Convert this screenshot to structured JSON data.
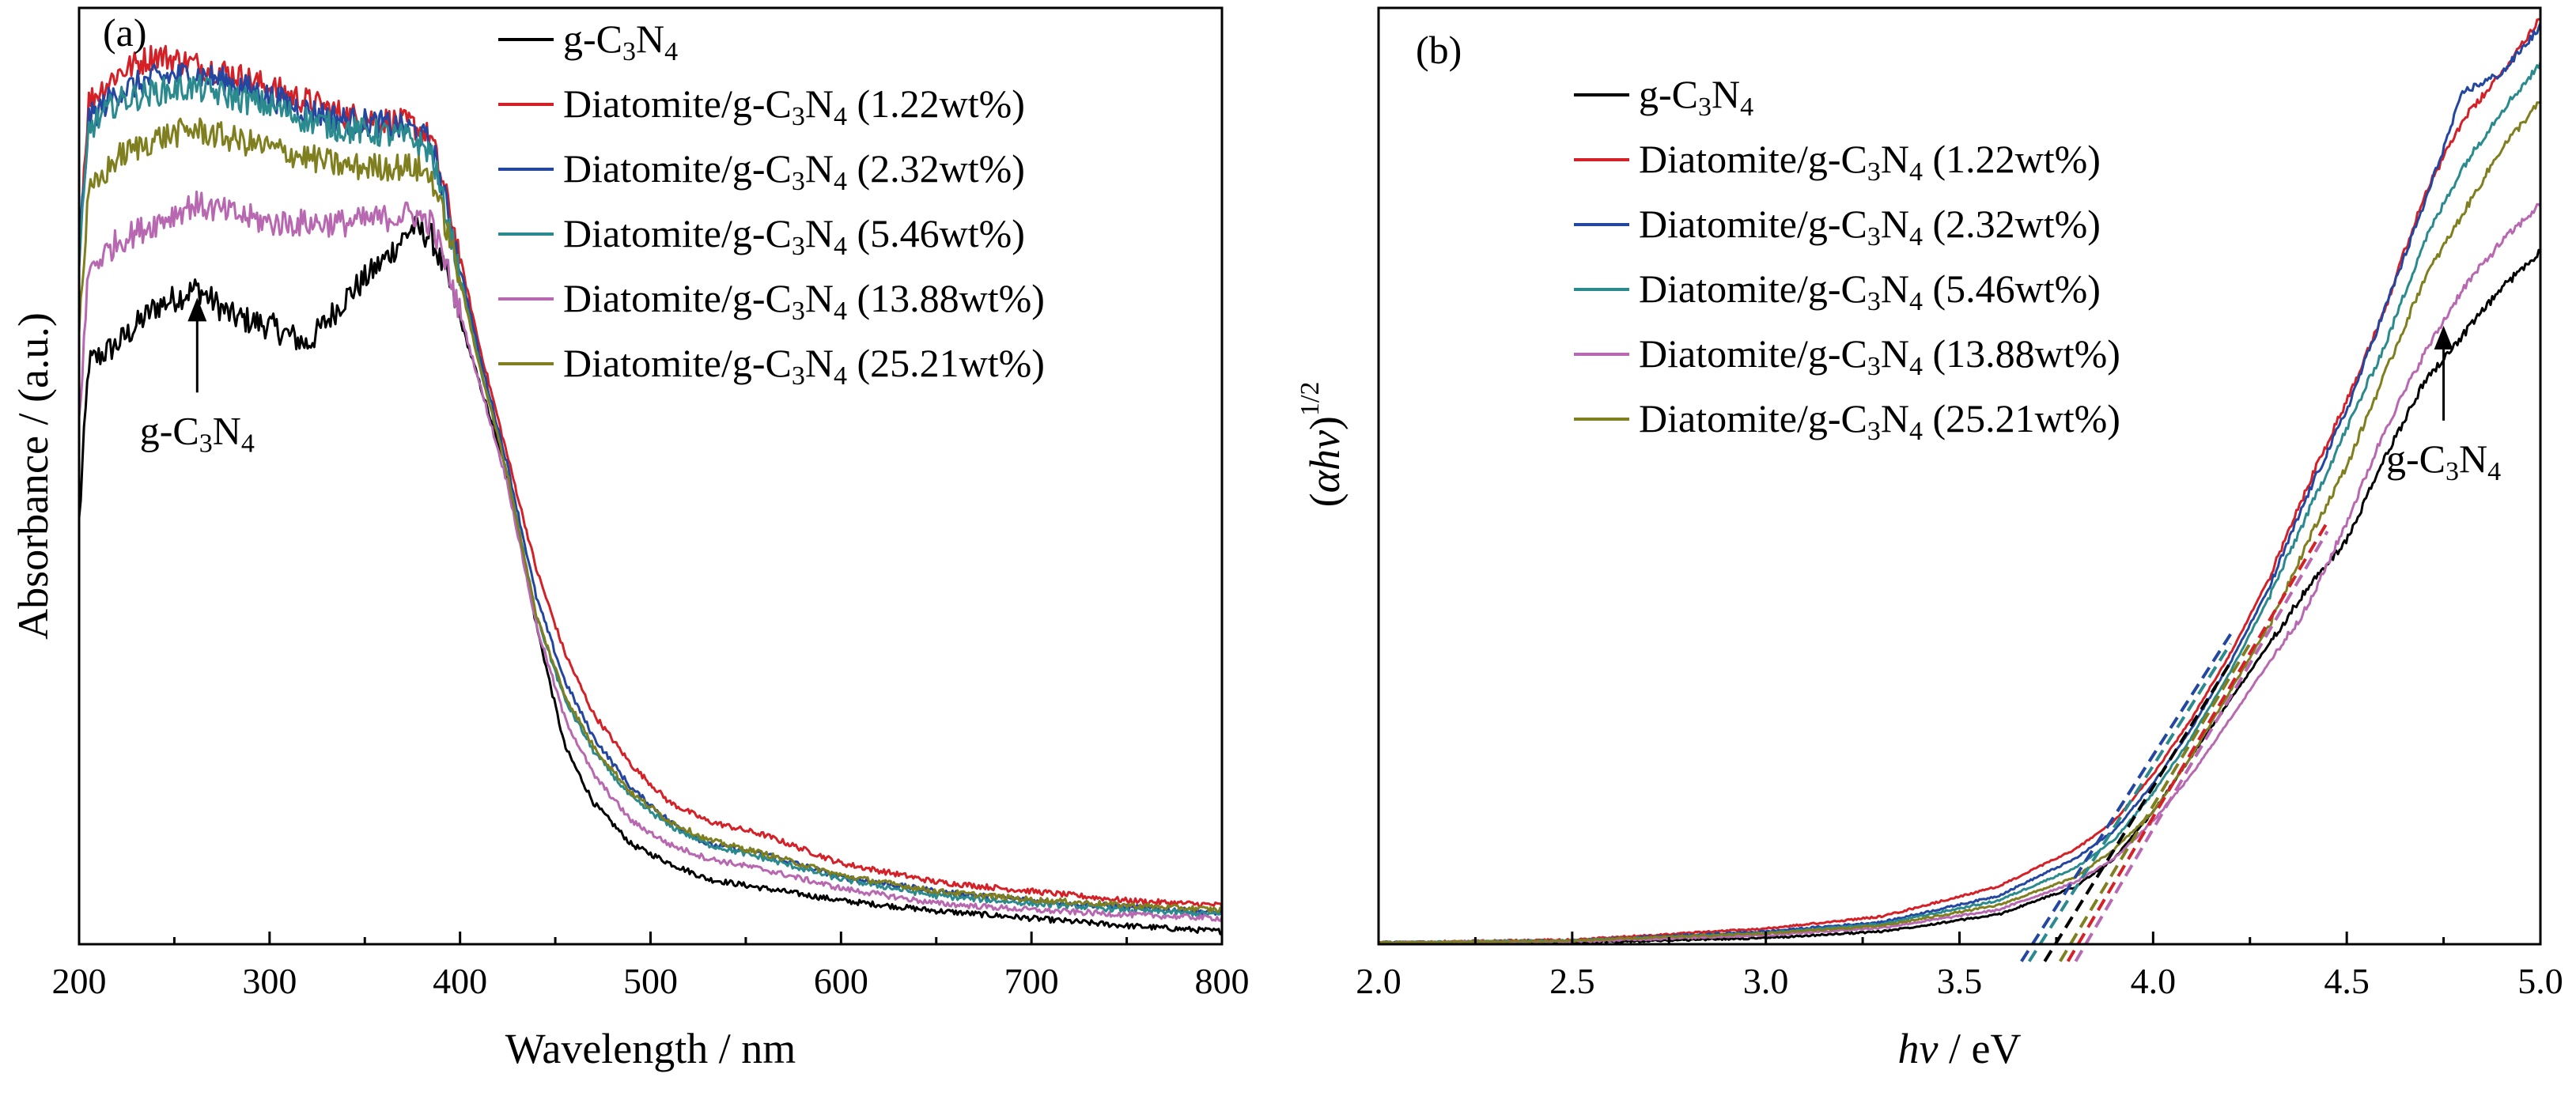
{
  "chart_data": [
    {
      "type": "line",
      "panel_label": "(a)",
      "xlabel": "Wavelength / nm",
      "ylabel": "Absorbance / (a.u.)",
      "xlim": [
        200,
        800
      ],
      "ylim": [
        0,
        1
      ],
      "x_ticks": [
        200,
        300,
        400,
        500,
        600,
        700,
        800
      ],
      "y_ticks_shown": false,
      "grid": false,
      "legend_position": "top-right",
      "annotation": {
        "text_parts": [
          "g-C",
          "3",
          "N",
          "4"
        ],
        "x": 262,
        "y": 0.69
      },
      "series": [
        {
          "name_parts": [
            "g-C",
            "3",
            "N",
            "4"
          ],
          "color": "#000000",
          "x": [
            200,
            205,
            220,
            240,
            262,
            280,
            300,
            320,
            340,
            360,
            375,
            385,
            395,
            410,
            425,
            440,
            455,
            470,
            490,
            510,
            530,
            560,
            600,
            650,
            700,
            750,
            800
          ],
          "y": [
            0.45,
            0.62,
            0.64,
            0.68,
            0.7,
            0.67,
            0.66,
            0.64,
            0.69,
            0.73,
            0.765,
            0.755,
            0.7,
            0.6,
            0.5,
            0.34,
            0.21,
            0.15,
            0.105,
            0.085,
            0.068,
            0.058,
            0.045,
            0.034,
            0.026,
            0.018,
            0.012
          ]
        },
        {
          "name_parts": [
            "Diatomite/g-C",
            "3",
            "N",
            "4",
            " (1.22wt%)"
          ],
          "color": "#d42027",
          "x": [
            200,
            205,
            220,
            240,
            260,
            280,
            300,
            320,
            340,
            360,
            375,
            385,
            395,
            410,
            425,
            440,
            455,
            470,
            490,
            510,
            530,
            560,
            600,
            650,
            700,
            750,
            800
          ],
          "y": [
            0.75,
            0.9,
            0.93,
            0.95,
            0.94,
            0.93,
            0.915,
            0.9,
            0.885,
            0.88,
            0.875,
            0.86,
            0.78,
            0.64,
            0.52,
            0.4,
            0.31,
            0.245,
            0.19,
            0.15,
            0.13,
            0.115,
            0.085,
            0.065,
            0.055,
            0.045,
            0.04
          ]
        },
        {
          "name_parts": [
            "Diatomite/g-C",
            "3",
            "N",
            "4",
            " (2.32wt%)"
          ],
          "color": "#2346a0",
          "x": [
            200,
            205,
            220,
            240,
            260,
            280,
            300,
            320,
            340,
            360,
            375,
            385,
            395,
            410,
            425,
            440,
            455,
            470,
            490,
            510,
            530,
            560,
            600,
            650,
            700,
            750,
            800
          ],
          "y": [
            0.74,
            0.88,
            0.91,
            0.925,
            0.93,
            0.92,
            0.905,
            0.89,
            0.88,
            0.875,
            0.87,
            0.855,
            0.77,
            0.63,
            0.51,
            0.37,
            0.28,
            0.22,
            0.165,
            0.13,
            0.105,
            0.095,
            0.07,
            0.055,
            0.045,
            0.038,
            0.032
          ]
        },
        {
          "name_parts": [
            "Diatomite/g-C",
            "3",
            "N",
            "4",
            " (5.46wt%)"
          ],
          "color": "#2b8a8e",
          "x": [
            200,
            205,
            220,
            240,
            260,
            280,
            300,
            320,
            340,
            360,
            375,
            385,
            395,
            410,
            425,
            440,
            455,
            470,
            490,
            510,
            530,
            560,
            600,
            650,
            700,
            750,
            800
          ],
          "y": [
            0.72,
            0.87,
            0.9,
            0.91,
            0.915,
            0.905,
            0.895,
            0.88,
            0.87,
            0.865,
            0.86,
            0.845,
            0.76,
            0.62,
            0.5,
            0.35,
            0.26,
            0.205,
            0.155,
            0.125,
            0.105,
            0.09,
            0.068,
            0.05,
            0.042,
            0.035,
            0.03
          ]
        },
        {
          "name_parts": [
            "Diatomite/g-C",
            "3",
            "N",
            "4",
            " (13.88wt%)"
          ],
          "color": "#b868b0",
          "x": [
            200,
            205,
            220,
            240,
            260,
            280,
            300,
            320,
            340,
            360,
            375,
            385,
            395,
            410,
            425,
            440,
            455,
            470,
            490,
            510,
            530,
            560,
            600,
            650,
            700,
            750,
            800
          ],
          "y": [
            0.56,
            0.72,
            0.75,
            0.77,
            0.79,
            0.78,
            0.77,
            0.77,
            0.77,
            0.775,
            0.78,
            0.77,
            0.71,
            0.6,
            0.49,
            0.34,
            0.24,
            0.18,
            0.13,
            0.105,
            0.09,
            0.078,
            0.058,
            0.042,
            0.035,
            0.03,
            0.026
          ]
        },
        {
          "name_parts": [
            "Diatomite/g-C",
            "3",
            "N",
            "4",
            " (25.21wt%)"
          ],
          "color": "#7f7f1f",
          "x": [
            200,
            205,
            220,
            240,
            260,
            280,
            300,
            320,
            340,
            360,
            375,
            385,
            395,
            410,
            425,
            440,
            455,
            470,
            490,
            510,
            530,
            560,
            600,
            650,
            700,
            750,
            800
          ],
          "y": [
            0.66,
            0.8,
            0.84,
            0.86,
            0.87,
            0.86,
            0.85,
            0.84,
            0.83,
            0.83,
            0.83,
            0.82,
            0.75,
            0.62,
            0.5,
            0.35,
            0.265,
            0.21,
            0.16,
            0.13,
            0.11,
            0.095,
            0.072,
            0.055,
            0.046,
            0.04,
            0.035
          ]
        }
      ]
    },
    {
      "type": "line",
      "panel_label": "(b)",
      "xlabel_parts": [
        "hv",
        " / eV"
      ],
      "ylabel_parts": [
        "(αhv)",
        "1/2"
      ],
      "xlim": [
        2.0,
        5.0
      ],
      "ylim": [
        0,
        1
      ],
      "x_ticks": [
        "2.0",
        "2.5",
        "3.0",
        "3.5",
        "4.0",
        "4.5",
        "5.0"
      ],
      "y_ticks_shown": false,
      "grid": false,
      "legend_position": "top-left",
      "annotation": {
        "text_parts": [
          "g-C",
          "3",
          "N",
          "4"
        ],
        "x": 4.75,
        "y": 0.66
      },
      "series": [
        {
          "name_parts": [
            "g-C",
            "3",
            "N",
            "4"
          ],
          "color": "#000000",
          "x": [
            2.0,
            2.5,
            3.0,
            3.3,
            3.6,
            3.8,
            3.9,
            4.0,
            4.1,
            4.2,
            4.3,
            4.4,
            4.5,
            4.6,
            4.7,
            4.8,
            4.9,
            5.0
          ],
          "y": [
            0.0,
            0.0,
            0.005,
            0.012,
            0.03,
            0.06,
            0.09,
            0.14,
            0.2,
            0.26,
            0.32,
            0.38,
            0.43,
            0.52,
            0.6,
            0.65,
            0.7,
            0.74
          ]
        },
        {
          "name_parts": [
            "Diatomite/g-C",
            "3",
            "N",
            "4",
            " (1.22wt%)"
          ],
          "color": "#d42027",
          "x": [
            2.0,
            2.5,
            3.0,
            3.3,
            3.6,
            3.8,
            3.9,
            4.0,
            4.1,
            4.2,
            4.3,
            4.4,
            4.5,
            4.6,
            4.7,
            4.8,
            4.9,
            5.0
          ],
          "y": [
            0.0,
            0.003,
            0.015,
            0.028,
            0.06,
            0.1,
            0.13,
            0.18,
            0.24,
            0.31,
            0.39,
            0.49,
            0.58,
            0.68,
            0.8,
            0.88,
            0.93,
            0.99
          ]
        },
        {
          "name_parts": [
            "Diatomite/g-C",
            "3",
            "N",
            "4",
            " (2.32wt%)"
          ],
          "color": "#2346a0",
          "x": [
            2.0,
            2.5,
            3.0,
            3.3,
            3.6,
            3.8,
            3.9,
            4.0,
            4.1,
            4.2,
            4.3,
            4.4,
            4.5,
            4.6,
            4.7,
            4.8,
            4.9,
            5.0
          ],
          "y": [
            0.0,
            0.002,
            0.012,
            0.022,
            0.05,
            0.09,
            0.12,
            0.17,
            0.23,
            0.3,
            0.38,
            0.48,
            0.57,
            0.68,
            0.79,
            0.91,
            0.93,
            0.98
          ]
        },
        {
          "name_parts": [
            "Diatomite/g-C",
            "3",
            "N",
            "4",
            " (5.46wt%)"
          ],
          "color": "#2b8a8e",
          "x": [
            2.0,
            2.5,
            3.0,
            3.3,
            3.6,
            3.8,
            3.9,
            4.0,
            4.1,
            4.2,
            4.3,
            4.4,
            4.5,
            4.6,
            4.7,
            4.8,
            4.9,
            5.0
          ],
          "y": [
            0.0,
            0.002,
            0.01,
            0.02,
            0.045,
            0.08,
            0.11,
            0.16,
            0.22,
            0.29,
            0.37,
            0.46,
            0.55,
            0.64,
            0.75,
            0.83,
            0.89,
            0.94
          ]
        },
        {
          "name_parts": [
            "Diatomite/g-C",
            "3",
            "N",
            "4",
            " (13.88wt%)"
          ],
          "color": "#b868b0",
          "x": [
            2.0,
            2.5,
            3.0,
            3.3,
            3.6,
            3.8,
            3.9,
            4.0,
            4.1,
            4.2,
            4.3,
            4.4,
            4.5,
            4.6,
            4.7,
            4.8,
            4.9,
            5.0
          ],
          "y": [
            0.0,
            0.001,
            0.008,
            0.016,
            0.035,
            0.065,
            0.09,
            0.13,
            0.18,
            0.24,
            0.3,
            0.36,
            0.45,
            0.55,
            0.63,
            0.7,
            0.75,
            0.79
          ]
        },
        {
          "name_parts": [
            "Diatomite/g-C",
            "3",
            "N",
            "4",
            " (25.21wt%)"
          ],
          "color": "#7f7f1f",
          "x": [
            2.0,
            2.5,
            3.0,
            3.3,
            3.6,
            3.8,
            3.9,
            4.0,
            4.1,
            4.2,
            4.3,
            4.4,
            4.5,
            4.6,
            4.7,
            4.8,
            4.9,
            5.0
          ],
          "y": [
            0.0,
            0.002,
            0.01,
            0.018,
            0.04,
            0.07,
            0.1,
            0.14,
            0.2,
            0.27,
            0.34,
            0.43,
            0.51,
            0.61,
            0.71,
            0.78,
            0.85,
            0.9
          ]
        }
      ],
      "tangent_lines": [
        {
          "color": "#2346a0",
          "x": [
            3.66,
            4.2
          ],
          "y": [
            -0.02,
            0.33
          ]
        },
        {
          "color": "#2b8a8e",
          "x": [
            3.68,
            4.2
          ],
          "y": [
            -0.02,
            0.32
          ]
        },
        {
          "color": "#000000",
          "x": [
            3.72,
            4.2
          ],
          "y": [
            -0.02,
            0.3
          ]
        },
        {
          "color": "#7f7f1f",
          "x": [
            3.76,
            4.25
          ],
          "y": [
            -0.02,
            0.32
          ]
        },
        {
          "color": "#d42027",
          "x": [
            3.78,
            4.45
          ],
          "y": [
            -0.02,
            0.45
          ]
        },
        {
          "color": "#b868b0",
          "x": [
            3.8,
            4.45
          ],
          "y": [
            -0.02,
            0.44
          ]
        }
      ]
    }
  ]
}
